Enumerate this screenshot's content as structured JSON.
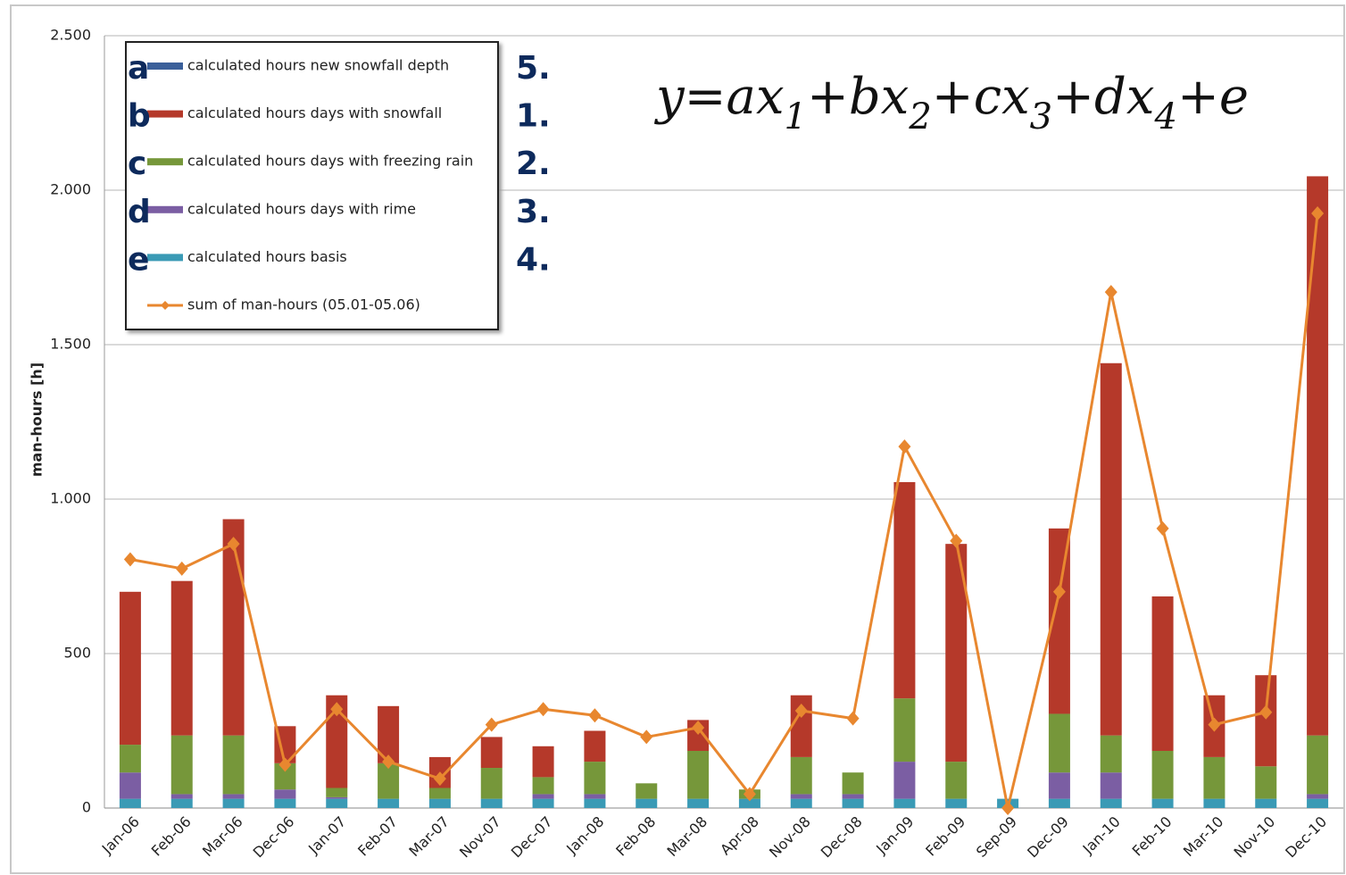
{
  "chart_data": {
    "type": "bar",
    "stacked": true,
    "y_label": "man-hours [h]",
    "categories": [
      "Jan-06",
      "Feb-06",
      "Mar-06",
      "Dec-06",
      "Jan-07",
      "Feb-07",
      "Mar-07",
      "Nov-07",
      "Dec-07",
      "Jan-08",
      "Feb-08",
      "Mar-08",
      "Apr-08",
      "Nov-08",
      "Dec-08",
      "Jan-09",
      "Feb-09",
      "Sep-09",
      "Dec-09",
      "Jan-10",
      "Feb-10",
      "Mar-10",
      "Nov-10",
      "Dec-10"
    ],
    "series": [
      {
        "name": "calculated hours new snowfall depth",
        "letter": "a",
        "rank": "5.",
        "color": "#3a5f9a",
        "values": [
          0,
          0,
          0,
          0,
          0,
          0,
          0,
          0,
          0,
          0,
          0,
          0,
          0,
          0,
          0,
          0,
          0,
          0,
          0,
          0,
          0,
          0,
          0,
          0
        ]
      },
      {
        "name": "calculated hours days with snowfall",
        "letter": "b",
        "rank": "1.",
        "color": "#b5392a",
        "values": [
          495,
          500,
          700,
          120,
          300,
          185,
          100,
          100,
          100,
          100,
          0,
          100,
          0,
          200,
          0,
          700,
          705,
          0,
          600,
          1205,
          500,
          200,
          295,
          1810
        ]
      },
      {
        "name": "calculated hours days with freezing rain",
        "letter": "c",
        "rank": "2.",
        "color": "#76973a",
        "values": [
          90,
          190,
          190,
          85,
          30,
          115,
          35,
          100,
          55,
          105,
          50,
          155,
          30,
          120,
          70,
          205,
          120,
          0,
          190,
          120,
          155,
          135,
          105,
          190
        ]
      },
      {
        "name": "calculated hours days with rime",
        "letter": "d",
        "rank": "3.",
        "color": "#7b5ea3",
        "values": [
          85,
          15,
          15,
          30,
          5,
          0,
          0,
          0,
          15,
          15,
          0,
          0,
          0,
          15,
          15,
          120,
          0,
          0,
          85,
          85,
          0,
          0,
          0,
          15
        ]
      },
      {
        "name": "calculated hours basis",
        "letter": "e",
        "rank": "4.",
        "color": "#3a9ab5",
        "values": [
          30,
          30,
          30,
          30,
          30,
          30,
          30,
          30,
          30,
          30,
          30,
          30,
          30,
          30,
          30,
          30,
          30,
          30,
          30,
          30,
          30,
          30,
          30,
          30
        ]
      },
      {
        "name": "sum of man-hours (05.01-05.06)",
        "type": "line",
        "color": "#e8872f",
        "values": [
          805,
          775,
          855,
          140,
          320,
          150,
          95,
          270,
          320,
          300,
          230,
          260,
          45,
          315,
          290,
          1170,
          865,
          0,
          700,
          1670,
          905,
          270,
          310,
          1925
        ]
      }
    ],
    "formula": [
      "y=ax",
      "1",
      "+bx",
      "2",
      "+cx",
      "3",
      "+dx",
      "4",
      "+e"
    ],
    "ylim": [
      0,
      2500
    ],
    "yticks": [
      0,
      500,
      {
        "value": 1000,
        "label": "1.000"
      },
      {
        "value": 1500,
        "label": "1.500"
      },
      {
        "value": 2000,
        "label": "2.000"
      },
      {
        "value": 2500,
        "label": "2.500"
      }
    ],
    "grid": true
  }
}
